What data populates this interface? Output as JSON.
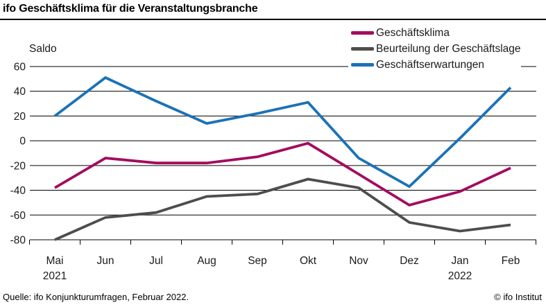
{
  "header": {
    "title": "ifo Geschäftsklima für die Veranstaltungsbranche"
  },
  "footer": {
    "source": "Quelle: ifo Konjunkturumfragen, Februar 2022.",
    "copyright": "© ifo Institut"
  },
  "chart_data": {
    "type": "line",
    "title": "ifo Geschäftsklima für die Veranstaltungsbranche",
    "ylabel": "Saldo",
    "ylim": [
      -80,
      60
    ],
    "yticks": [
      60,
      40,
      20,
      0,
      -20,
      -40,
      -60,
      -80
    ],
    "grid": true,
    "legend_position": "top-right",
    "categories": [
      "Mai",
      "Jun",
      "Jul",
      "Aug",
      "Sep",
      "Okt",
      "Nov",
      "Dez",
      "Jan",
      "Feb"
    ],
    "x_year_labels": [
      {
        "index": 0,
        "label": "2021"
      },
      {
        "index": 8,
        "label": "2022"
      }
    ],
    "series": [
      {
        "name": "Geschäftsklima",
        "color": "#a30c5e",
        "values": [
          -38,
          -14,
          -18,
          -18,
          -13,
          -2,
          -27,
          -52,
          -41,
          -22
        ]
      },
      {
        "name": "Beurteilung der Geschäftslage",
        "color": "#4d4d4d",
        "values": [
          -80,
          -62,
          -58,
          -45,
          -43,
          -31,
          -38,
          -66,
          -73,
          -68
        ]
      },
      {
        "name": "Geschäftserwartungen",
        "color": "#1a72b8",
        "values": [
          20,
          51,
          32,
          14,
          22,
          31,
          -14,
          -37,
          2,
          43
        ]
      }
    ],
    "colors": {
      "text": "#1a1a1a",
      "grid": "#000000",
      "background": "#ffffff"
    }
  }
}
